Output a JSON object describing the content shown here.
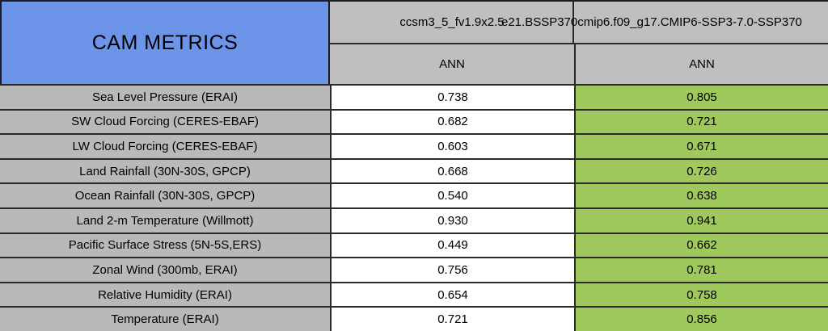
{
  "header": {
    "title": "CAM METRICS",
    "model_1": "ccsm3_5_fv1.9x2.5",
    "model_2": "e21.BSSP370cmip6.f09_g17.CMIP6-SSP3-7.0-SSP370",
    "season_1": "ANN",
    "season_2": "ANN"
  },
  "rows": [
    {
      "label": "Sea Level Pressure (ERAI)",
      "v1": "0.738",
      "v2": "0.805"
    },
    {
      "label": "SW Cloud Forcing (CERES-EBAF)",
      "v1": "0.682",
      "v2": "0.721"
    },
    {
      "label": "LW Cloud Forcing (CERES-EBAF)",
      "v1": "0.603",
      "v2": "0.671"
    },
    {
      "label": "Land Rainfall (30N-30S, GPCP)",
      "v1": "0.668",
      "v2": "0.726"
    },
    {
      "label": "Ocean Rainfall (30N-30S, GPCP)",
      "v1": "0.540",
      "v2": "0.638"
    },
    {
      "label": "Land 2-m Temperature (Willmott)",
      "v1": "0.930",
      "v2": "0.941"
    },
    {
      "label": "Pacific Surface Stress (5N-5S,ERS)",
      "v1": "0.449",
      "v2": "0.662"
    },
    {
      "label": "Zonal Wind (300mb, ERAI)",
      "v1": "0.756",
      "v2": "0.781"
    },
    {
      "label": "Relative Humidity (ERAI)",
      "v1": "0.654",
      "v2": "0.758"
    },
    {
      "label": "Temperature (ERAI)",
      "v1": "0.721",
      "v2": "0.856"
    }
  ],
  "colors": {
    "title_bg": "#6C94E8",
    "header_bg": "#BFBFBF",
    "label_bg": "#B9B9B9",
    "value_bg": "#FFFFFF",
    "highlight_bg": "#9FC95C",
    "border": "#2A2A2A"
  }
}
